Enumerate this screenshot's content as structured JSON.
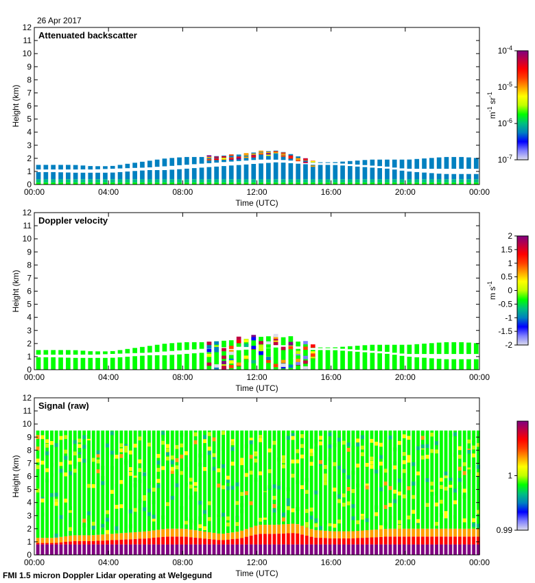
{
  "date_label": "26 Apr 2017",
  "footer": "FMI 1.5 micron Doppler Lidar operating at Welgegund",
  "colors": {
    "rainbow": [
      "#dcdcec",
      "#8080ff",
      "#0000ff",
      "#0080c0",
      "#00c080",
      "#00ff00",
      "#c0ff00",
      "#ffff00",
      "#ffa000",
      "#ff4000",
      "#ff0000",
      "#c00040",
      "#800080"
    ]
  },
  "chart_data": [
    {
      "type": "heatmap",
      "title": "Attenuated backscatter",
      "xlabel": "Time (UTC)",
      "ylabel": "Height (km)",
      "xticks": [
        "00:00",
        "04:00",
        "08:00",
        "12:00",
        "16:00",
        "20:00",
        "00:00"
      ],
      "yticks": [
        "0",
        "1",
        "2",
        "3",
        "4",
        "5",
        "6",
        "7",
        "8",
        "9",
        "10",
        "11",
        "12"
      ],
      "xlim_hours": [
        0,
        24
      ],
      "ylim_km": [
        0,
        12
      ],
      "colorbar": {
        "label_base": "m",
        "label_exp1": "-1",
        "label_mid": " sr",
        "label_exp2": "-1",
        "ticks": [
          {
            "base": "10",
            "exp": "-4",
            "frac": 1
          },
          {
            "base": "10",
            "exp": "-5",
            "frac": 0.667
          },
          {
            "base": "10",
            "exp": "-6",
            "frac": 0.333
          },
          {
            "base": "10",
            "exp": "-7",
            "frac": 0
          }
        ]
      },
      "column_step_hours": 0.4,
      "hours": [
        0,
        1,
        2,
        3,
        4,
        5,
        6,
        7,
        8,
        9,
        10,
        11,
        12,
        13,
        14,
        15,
        16,
        17,
        18,
        19,
        20,
        21,
        22,
        23,
        24
      ],
      "lower_layer_top_km": [
        0.95,
        0.95,
        0.9,
        0.9,
        0.9,
        1.0,
        1.1,
        1.1,
        1.2,
        1.3,
        1.4,
        1.5,
        1.6,
        1.7,
        1.6,
        1.5,
        1.5,
        1.4,
        1.3,
        1.2,
        1.0,
        0.9,
        0.8,
        0.8,
        0.8
      ],
      "upper_layer_base_km": [
        1.15,
        1.15,
        1.15,
        1.15,
        1.2,
        1.25,
        1.3,
        1.4,
        1.5,
        1.6,
        1.7,
        1.8,
        1.9,
        1.9,
        1.8,
        1.6,
        1.6,
        1.5,
        1.4,
        1.3,
        1.2,
        1.2,
        1.2,
        1.2,
        1.2
      ],
      "upper_layer_top_km": [
        1.5,
        1.5,
        1.5,
        1.4,
        1.4,
        1.6,
        1.8,
        2.0,
        2.1,
        2.1,
        2.2,
        2.3,
        2.5,
        2.6,
        2.2,
        1.7,
        1.7,
        1.8,
        1.9,
        1.9,
        1.9,
        2.0,
        2.1,
        2.1,
        2.0
      ]
    },
    {
      "type": "heatmap",
      "title": "Doppler velocity",
      "xlabel": "Time (UTC)",
      "ylabel": "Height (km)",
      "xticks": [
        "00:00",
        "04:00",
        "08:00",
        "12:00",
        "16:00",
        "20:00",
        "00:00"
      ],
      "yticks": [
        "0",
        "1",
        "2",
        "3",
        "4",
        "5",
        "6",
        "7",
        "8",
        "9",
        "10",
        "11",
        "12"
      ],
      "xlim_hours": [
        0,
        24
      ],
      "ylim_km": [
        0,
        12
      ],
      "colorbar": {
        "label_base": "m s",
        "label_exp1": "-1",
        "ticks": [
          {
            "v": "2",
            "frac": 1
          },
          {
            "v": "1.5",
            "frac": 0.875
          },
          {
            "v": "1",
            "frac": 0.75
          },
          {
            "v": "0.5",
            "frac": 0.625
          },
          {
            "v": "0",
            "frac": 0.5
          },
          {
            "v": "-0.5",
            "frac": 0.375
          },
          {
            "v": "-1",
            "frac": 0.25
          },
          {
            "v": "-1.5",
            "frac": 0.125
          },
          {
            "v": "-2",
            "frac": 0
          }
        ]
      },
      "column_step_hours": 0.4,
      "turbulent_hours": [
        9,
        15
      ]
    },
    {
      "type": "heatmap",
      "title": "Signal (raw)",
      "xlabel": "Time (UTC)",
      "ylabel": "Height (km)",
      "xticks": [
        "00:00",
        "04:00",
        "08:00",
        "12:00",
        "16:00",
        "20:00",
        "00:00"
      ],
      "yticks": [
        "0",
        "1",
        "2",
        "3",
        "4",
        "5",
        "6",
        "7",
        "8",
        "9",
        "10",
        "11",
        "12"
      ],
      "xlim_hours": [
        0,
        24
      ],
      "ylim_km": [
        0,
        12
      ],
      "colorbar": {
        "ticks": [
          {
            "v": "1",
            "frac": 0.5
          },
          {
            "v": "0.99",
            "frac": 0
          }
        ]
      },
      "column_step_hours": 0.25,
      "max_range_km": 9.5,
      "near_field_top_km": 0.8,
      "boundary_layer_top_km": [
        1.3,
        1.3,
        1.5,
        1.5,
        1.6,
        1.7,
        1.8,
        2.0,
        2.0,
        1.8,
        1.6,
        1.8,
        2.3,
        2.3,
        2.4,
        1.9,
        1.8,
        1.8,
        1.9,
        2.0,
        2.0,
        2.0,
        2.0,
        2.0,
        2.0
      ]
    }
  ]
}
